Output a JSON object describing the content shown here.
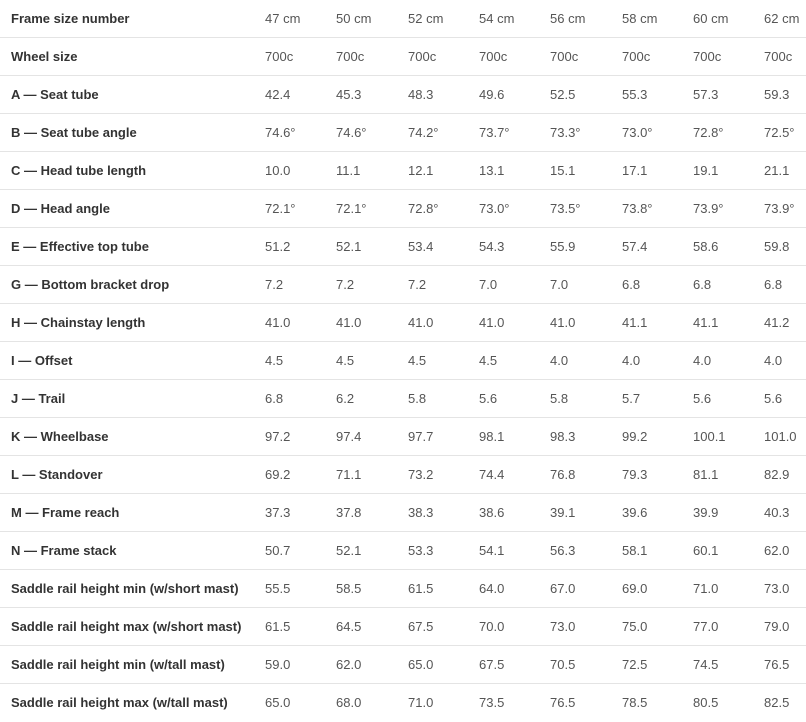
{
  "table": {
    "header": [
      "Frame size number",
      "47 cm",
      "50 cm",
      "52 cm",
      "54 cm",
      "56 cm",
      "58 cm",
      "60 cm",
      "62 cm"
    ],
    "rows": [
      [
        "Wheel size",
        "700c",
        "700c",
        "700c",
        "700c",
        "700c",
        "700c",
        "700c",
        "700c"
      ],
      [
        "A — Seat tube",
        "42.4",
        "45.3",
        "48.3",
        "49.6",
        "52.5",
        "55.3",
        "57.3",
        "59.3"
      ],
      [
        "B — Seat tube angle",
        "74.6°",
        "74.6°",
        "74.2°",
        "73.7°",
        "73.3°",
        "73.0°",
        "72.8°",
        "72.5°"
      ],
      [
        "C — Head tube length",
        "10.0",
        "11.1",
        "12.1",
        "13.1",
        "15.1",
        "17.1",
        "19.1",
        "21.1"
      ],
      [
        "D — Head angle",
        "72.1°",
        "72.1°",
        "72.8°",
        "73.0°",
        "73.5°",
        "73.8°",
        "73.9°",
        "73.9°"
      ],
      [
        "E — Effective top tube",
        "51.2",
        "52.1",
        "53.4",
        "54.3",
        "55.9",
        "57.4",
        "58.6",
        "59.8"
      ],
      [
        "G — Bottom bracket drop",
        "7.2",
        "7.2",
        "7.2",
        "7.0",
        "7.0",
        "6.8",
        "6.8",
        "6.8"
      ],
      [
        "H — Chainstay length",
        "41.0",
        "41.0",
        "41.0",
        "41.0",
        "41.0",
        "41.1",
        "41.1",
        "41.2"
      ],
      [
        "I — Offset",
        "4.5",
        "4.5",
        "4.5",
        "4.5",
        "4.0",
        "4.0",
        "4.0",
        "4.0"
      ],
      [
        "J — Trail",
        "6.8",
        "6.2",
        "5.8",
        "5.6",
        "5.8",
        "5.7",
        "5.6",
        "5.6"
      ],
      [
        "K — Wheelbase",
        "97.2",
        "97.4",
        "97.7",
        "98.1",
        "98.3",
        "99.2",
        "100.1",
        "101.0"
      ],
      [
        "L — Standover",
        "69.2",
        "71.1",
        "73.2",
        "74.4",
        "76.8",
        "79.3",
        "81.1",
        "82.9"
      ],
      [
        "M — Frame reach",
        "37.3",
        "37.8",
        "38.3",
        "38.6",
        "39.1",
        "39.6",
        "39.9",
        "40.3"
      ],
      [
        "N — Frame stack",
        "50.7",
        "52.1",
        "53.3",
        "54.1",
        "56.3",
        "58.1",
        "60.1",
        "62.0"
      ],
      [
        "Saddle rail height min (w/short mast)",
        "55.5",
        "58.5",
        "61.5",
        "64.0",
        "67.0",
        "69.0",
        "71.0",
        "73.0"
      ],
      [
        "Saddle rail height max (w/short mast)",
        "61.5",
        "64.5",
        "67.5",
        "70.0",
        "73.0",
        "75.0",
        "77.0",
        "79.0"
      ],
      [
        "Saddle rail height min (w/tall mast)",
        "59.0",
        "62.0",
        "65.0",
        "67.5",
        "70.5",
        "72.5",
        "74.5",
        "76.5"
      ],
      [
        "Saddle rail height max (w/tall mast)",
        "65.0",
        "68.0",
        "71.0",
        "73.5",
        "76.5",
        "78.5",
        "80.5",
        "82.5"
      ]
    ]
  }
}
